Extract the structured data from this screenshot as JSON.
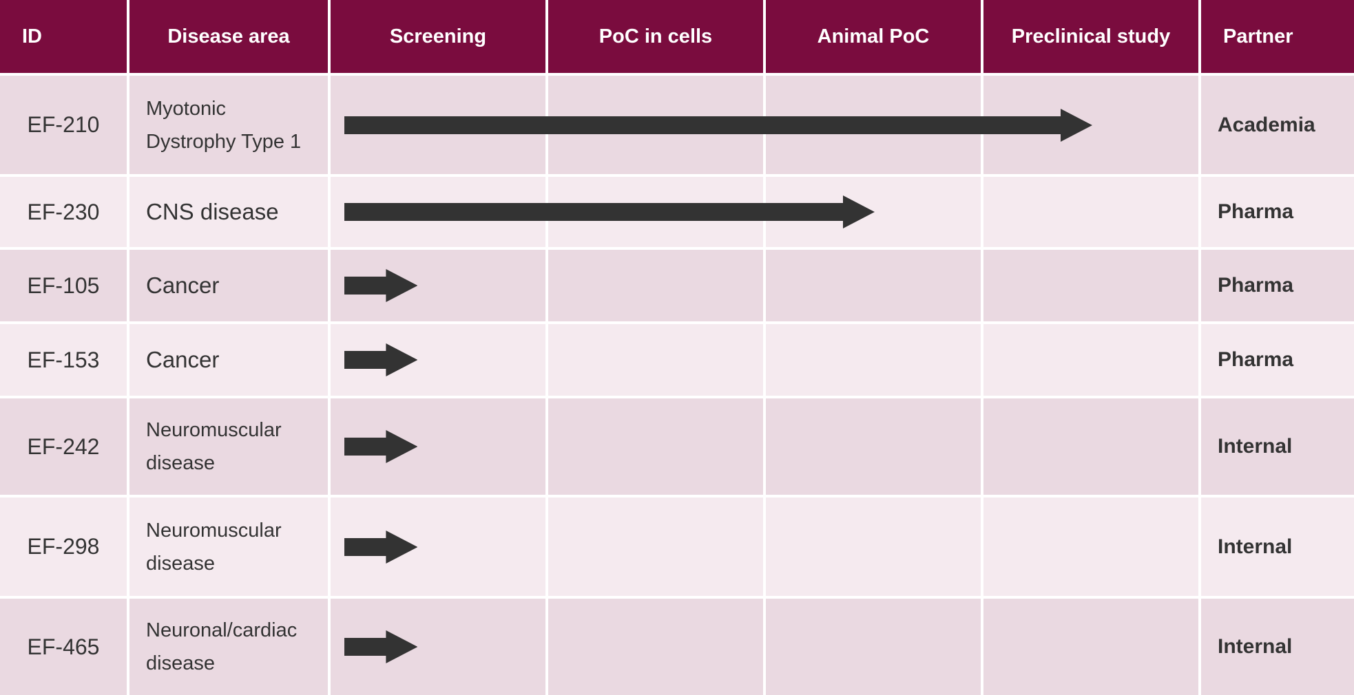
{
  "table": {
    "header": {
      "id": "ID",
      "disease_area": "Disease area",
      "screening": "Screening",
      "poc_in_cells": "PoC in cells",
      "animal_poc": "Animal PoC",
      "preclinical_study": "Preclinical study",
      "partner": "Partner"
    },
    "stages": [
      "Screening",
      "PoC in cells",
      "Animal PoC",
      "Preclinical study"
    ],
    "rows": [
      {
        "id": "EF-210",
        "area_line1": "Myotonic",
        "area_line2": "Dystrophy Type 1",
        "partner": "Academia",
        "progress_stages": 3.5
      },
      {
        "id": "EF-230",
        "area_line1": "CNS disease",
        "area_line2": "",
        "partner": "Pharma",
        "progress_stages": 2.5
      },
      {
        "id": "EF-105",
        "area_line1": "Cancer",
        "area_line2": "",
        "partner": "Pharma",
        "progress_stages": 0.4
      },
      {
        "id": "EF-153",
        "area_line1": "Cancer",
        "area_line2": "",
        "partner": "Pharma",
        "progress_stages": 0.4
      },
      {
        "id": "EF-242",
        "area_line1": "Neuromuscular",
        "area_line2": "disease",
        "partner": "Internal",
        "progress_stages": 0.4
      },
      {
        "id": "EF-298",
        "area_line1": "Neuromuscular",
        "area_line2": "disease",
        "partner": "Internal",
        "progress_stages": 0.4
      },
      {
        "id": "EF-465",
        "area_line1": "Neuronal/cardiac",
        "area_line2": "disease",
        "partner": "Internal",
        "progress_stages": 0.4
      }
    ]
  },
  "colors": {
    "header_bg": "#7a0c3e",
    "header_text": "#ffffff",
    "row_odd_bg": "#ead9e1",
    "row_even_bg": "#f5eaef",
    "text": "#333333",
    "arrow": "#333333"
  }
}
